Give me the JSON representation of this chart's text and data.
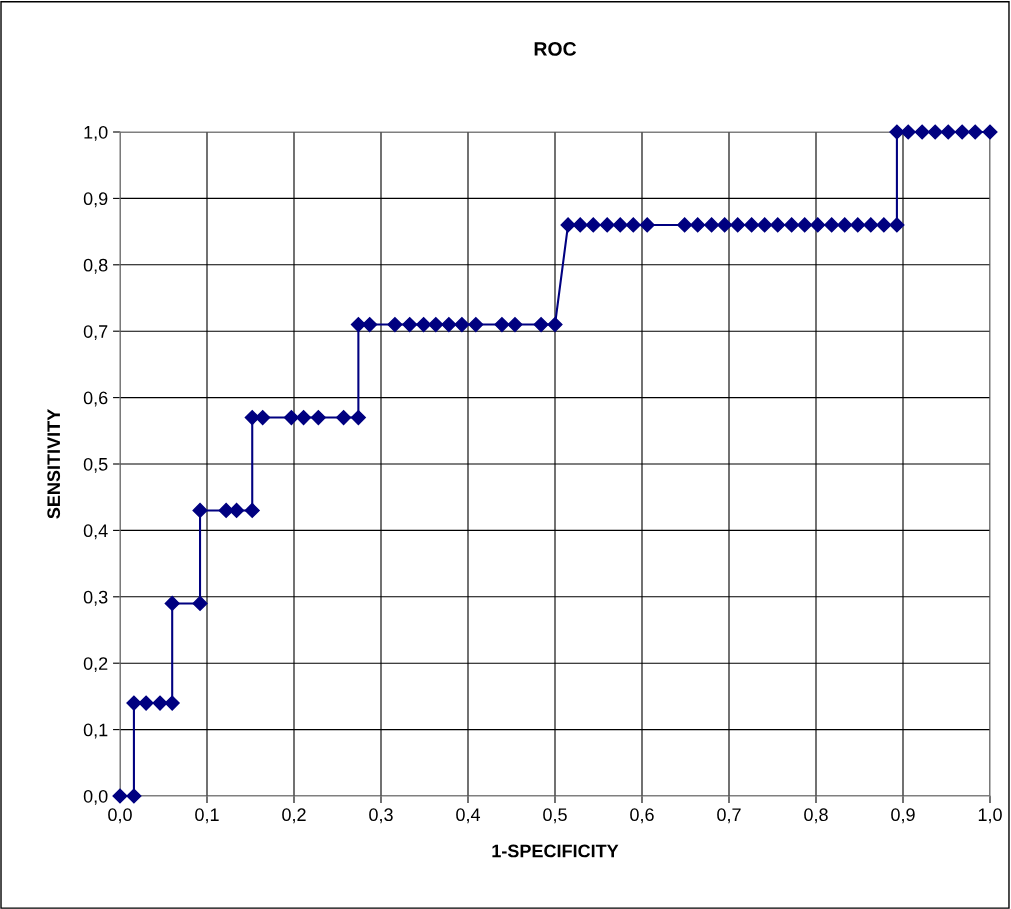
{
  "chart_data": {
    "type": "line",
    "title": "ROC",
    "xlabel": "1-SPECIFICITY",
    "ylabel": "SENSITIVITY",
    "x": [
      0,
      0.016,
      0.016,
      0.03,
      0.046,
      0.06,
      0.06,
      0.092,
      0.092,
      0.122,
      0.134,
      0.152,
      0.152,
      0.164,
      0.197,
      0.211,
      0.228,
      0.257,
      0.274,
      0.274,
      0.287,
      0.316,
      0.333,
      0.349,
      0.363,
      0.378,
      0.393,
      0.409,
      0.439,
      0.454,
      0.484,
      0.5,
      0.515,
      0.529,
      0.544,
      0.56,
      0.575,
      0.59,
      0.606,
      0.649,
      0.664,
      0.68,
      0.695,
      0.71,
      0.726,
      0.741,
      0.756,
      0.772,
      0.787,
      0.802,
      0.818,
      0.833,
      0.848,
      0.863,
      0.878,
      0.893,
      0.893,
      0.906,
      0.922,
      0.937,
      0.952,
      0.968,
      0.983,
      1.0
    ],
    "series": [
      {
        "color": "#000080",
        "values": [
          0,
          0,
          0.14,
          0.14,
          0.14,
          0.14,
          0.29,
          0.29,
          0.43,
          0.43,
          0.43,
          0.43,
          0.57,
          0.57,
          0.57,
          0.57,
          0.57,
          0.57,
          0.57,
          0.71,
          0.71,
          0.71,
          0.71,
          0.71,
          0.71,
          0.71,
          0.71,
          0.71,
          0.71,
          0.71,
          0.71,
          0.71,
          0.86,
          0.86,
          0.86,
          0.86,
          0.86,
          0.86,
          0.86,
          0.86,
          0.86,
          0.86,
          0.86,
          0.86,
          0.86,
          0.86,
          0.86,
          0.86,
          0.86,
          0.86,
          0.86,
          0.86,
          0.86,
          0.86,
          0.86,
          0.86,
          1,
          1,
          1,
          1,
          1,
          1,
          1,
          1
        ]
      }
    ],
    "xlim": [
      0,
      1
    ],
    "ylim": [
      0,
      1
    ],
    "xticks": [
      {
        "value": 0,
        "label": "0,0"
      },
      {
        "value": 0.1,
        "label": "0,1"
      },
      {
        "value": 0.2,
        "label": "0,2"
      },
      {
        "value": 0.3,
        "label": "0,3"
      },
      {
        "value": 0.4,
        "label": "0,4"
      },
      {
        "value": 0.5,
        "label": "0,5"
      },
      {
        "value": 0.6,
        "label": "0,6"
      },
      {
        "value": 0.7,
        "label": "0,7"
      },
      {
        "value": 0.8,
        "label": "0,8"
      },
      {
        "value": 0.9,
        "label": "0,9"
      },
      {
        "value": 1,
        "label": "1,0"
      }
    ],
    "yticks": [
      {
        "value": 0,
        "label": "0,0"
      },
      {
        "value": 0.1,
        "label": "0,1"
      },
      {
        "value": 0.2,
        "label": "0,2"
      },
      {
        "value": 0.3,
        "label": "0,3"
      },
      {
        "value": 0.4,
        "label": "0,4"
      },
      {
        "value": 0.5,
        "label": "0,5"
      },
      {
        "value": 0.6,
        "label": "0,6"
      },
      {
        "value": 0.7,
        "label": "0,7"
      },
      {
        "value": 0.8,
        "label": "0,8"
      },
      {
        "value": 0.9,
        "label": "0,9"
      },
      {
        "value": 1,
        "label": "1,0"
      }
    ],
    "grid": true,
    "marker": "diamond",
    "line_style": "solid",
    "legend": false
  }
}
